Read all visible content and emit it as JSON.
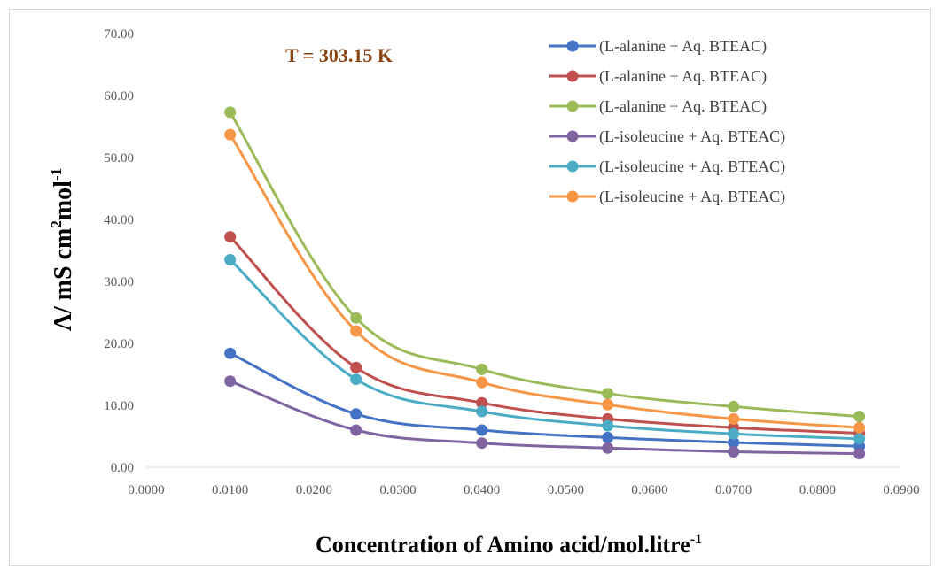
{
  "chart_data": {
    "type": "line",
    "annotation": "T = 303.15 K",
    "xlabel": "Concentration of Amino acid/mol.litre",
    "xlabel_sup": "-1",
    "ylabel_parts": [
      "Λ/ mS cm",
      "2",
      "mol",
      "-1"
    ],
    "xlim": [
      0,
      0.09
    ],
    "ylim": [
      0,
      70
    ],
    "x_ticks": [
      "0.0000",
      "0.0100",
      "0.0200",
      "0.0300",
      "0.0400",
      "0.0500",
      "0.0600",
      "0.0700",
      "0.0800",
      "0.0900"
    ],
    "y_ticks": [
      "0.00",
      "10.00",
      "20.00",
      "30.00",
      "40.00",
      "50.00",
      "60.00",
      "70.00"
    ],
    "grid": false,
    "legend_position": "top-right",
    "x": [
      0.01,
      0.025,
      0.04,
      0.055,
      0.07,
      0.085
    ],
    "series": [
      {
        "name": "(L-alanine + Aq. BTEAC)",
        "color": "#4472C4",
        "values": [
          18.4,
          8.6,
          6.0,
          4.8,
          4.0,
          3.4
        ]
      },
      {
        "name": "(L-alanine + Aq. BTEAC)",
        "color": "#C0504D",
        "values": [
          37.2,
          16.1,
          10.4,
          7.8,
          6.4,
          5.5
        ]
      },
      {
        "name": "(L-alanine + Aq. BTEAC)",
        "color": "#9BBB59",
        "values": [
          57.3,
          24.1,
          15.8,
          11.9,
          9.8,
          8.2
        ]
      },
      {
        "name": "(L-isoleucine + Aq. BTEAC)",
        "color": "#8064A2",
        "values": [
          13.9,
          6.0,
          3.9,
          3.1,
          2.5,
          2.2
        ]
      },
      {
        "name": "(L-isoleucine + Aq. BTEAC)",
        "color": "#4BACC6",
        "values": [
          33.5,
          14.2,
          9.0,
          6.7,
          5.4,
          4.6
        ]
      },
      {
        "name": "(L-isoleucine + Aq. BTEAC)",
        "color": "#F79646",
        "values": [
          53.7,
          22.0,
          13.7,
          10.1,
          7.8,
          6.4
        ]
      }
    ]
  }
}
